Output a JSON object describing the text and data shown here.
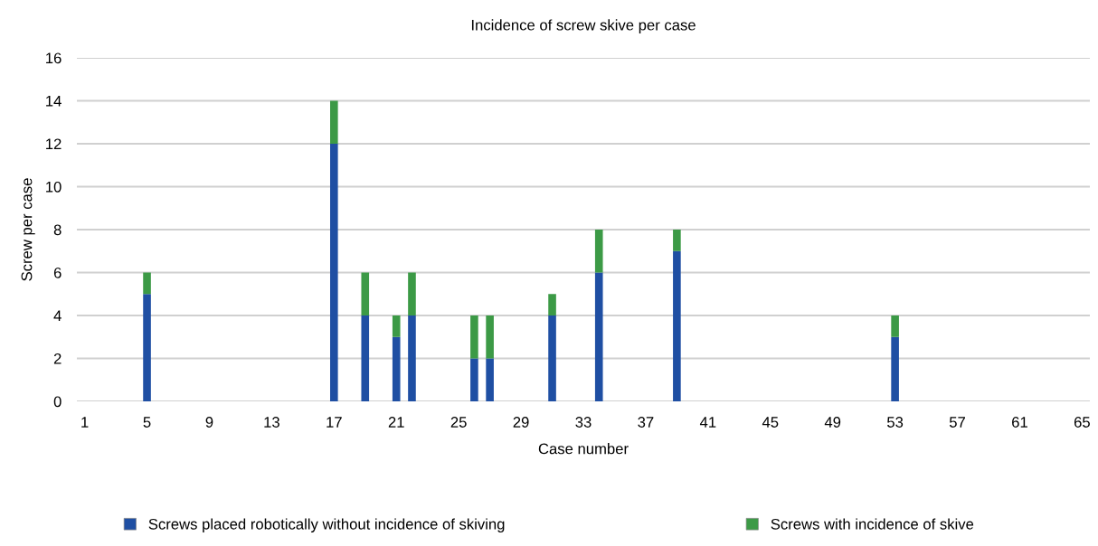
{
  "chart_data": {
    "type": "bar",
    "title": "Incidence of screw skive per case",
    "xlabel": "Case number",
    "ylabel": "Screw per case",
    "categories": [
      "1",
      null,
      null,
      null,
      "5",
      null,
      null,
      null,
      "9",
      null,
      null,
      null,
      "13",
      null,
      null,
      null,
      "17",
      null,
      null,
      null,
      "21",
      null,
      null,
      null,
      "25",
      null,
      null,
      null,
      "29",
      null,
      null,
      null,
      "33",
      null,
      null,
      null,
      "37",
      null,
      null,
      null,
      "41",
      null,
      null,
      null,
      "45",
      null,
      null,
      null,
      "49",
      null,
      null,
      null,
      "53",
      null,
      null,
      null,
      "57",
      null,
      null,
      null,
      "61",
      null,
      null,
      null,
      "65"
    ],
    "stacked": true,
    "series": [
      {
        "name": "Screws placed robotically without incidence of skiving",
        "color": "#1f4fa3",
        "values": [
          0,
          0,
          0,
          0,
          5,
          0,
          0,
          0,
          0,
          0,
          0,
          0,
          0,
          0,
          0,
          0,
          12,
          0,
          4,
          0,
          3,
          4,
          0,
          0,
          0,
          2,
          2,
          0,
          0,
          0,
          4,
          0,
          0,
          6,
          0,
          0,
          0,
          0,
          7,
          0,
          0,
          0,
          0,
          0,
          0,
          0,
          0,
          0,
          0,
          0,
          0,
          0,
          3,
          0,
          0,
          0,
          0,
          0,
          0,
          0,
          0,
          0,
          0,
          0,
          0
        ]
      },
      {
        "name": "Screws with incidence of skive",
        "color": "#3c9a46",
        "values": [
          0,
          0,
          0,
          0,
          1,
          0,
          0,
          0,
          0,
          0,
          0,
          0,
          0,
          0,
          0,
          0,
          2,
          0,
          2,
          0,
          1,
          2,
          0,
          0,
          0,
          2,
          2,
          0,
          0,
          0,
          1,
          0,
          0,
          2,
          0,
          0,
          0,
          0,
          1,
          0,
          0,
          0,
          0,
          0,
          0,
          0,
          0,
          0,
          0,
          0,
          0,
          0,
          1,
          0,
          0,
          0,
          0,
          0,
          0,
          0,
          0,
          0,
          0,
          0,
          0
        ]
      }
    ],
    "ylim": [
      0,
      16
    ],
    "yticks": [
      0,
      2,
      4,
      6,
      8,
      10,
      12,
      14,
      16
    ],
    "grid": "y",
    "legend": "bottom"
  }
}
